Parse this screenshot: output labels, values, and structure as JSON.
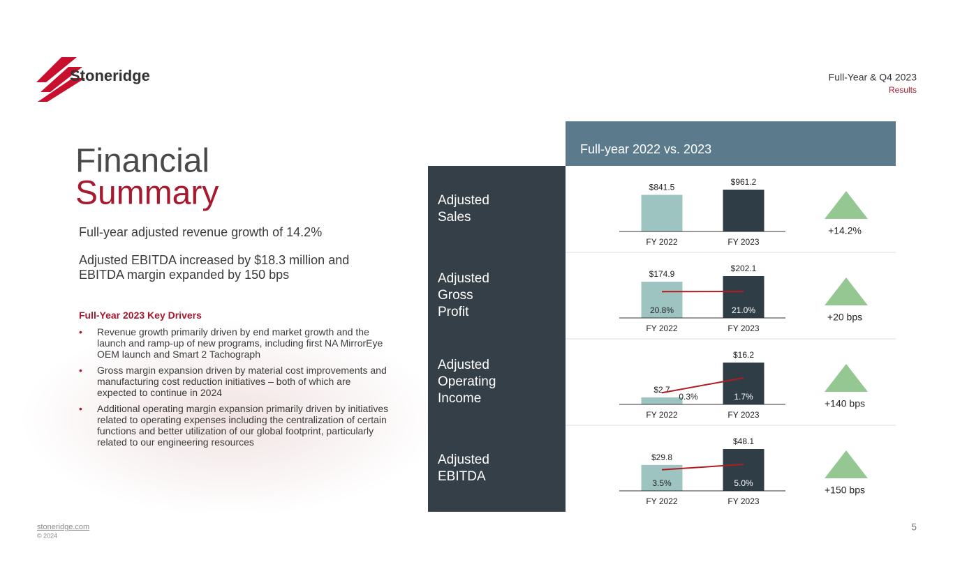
{
  "logo": "Stoneridge",
  "header": {
    "title": "Full-Year & Q4 2023",
    "subtitle": "Results"
  },
  "heading": {
    "line1": "Financial",
    "line2": "Summary"
  },
  "highlights": [
    "Full-year adjusted revenue growth of 14.2%",
    "Adjusted EBITDA increased by $18.3 million and EBITDA margin expanded by 150 bps"
  ],
  "drivers": {
    "title": "Full-Year 2023 Key Drivers",
    "items": [
      "Revenue growth primarily driven by end market growth and the launch and ramp-up of new programs, including first NA MirrorEye OEM launch and Smart 2 Tachograph",
      "Gross margin expansion driven by material cost improvements and manufacturing cost reduction initiatives – both of which are expected to continue in 2024",
      "Additional operating margin expansion primarily driven by initiatives related to operating expenses including the centralization of certain functions and better utilization of our global footprint, particularly related to our engineering resources"
    ]
  },
  "panel": {
    "title": "Full-year 2022 vs. 2023",
    "rows": [
      {
        "label": "Adjusted Sales",
        "categories": [
          "FY 2022",
          "FY 2023"
        ],
        "values": [
          841.5,
          961.2
        ],
        "value_labels": [
          "$841.5",
          "$961.2"
        ],
        "change": "+14.2%"
      },
      {
        "label": "Adjusted Gross Profit",
        "categories": [
          "FY 2022",
          "FY 2023"
        ],
        "values": [
          174.9,
          202.1
        ],
        "value_labels": [
          "$174.9",
          "$202.1"
        ],
        "margins": [
          20.8,
          21.0
        ],
        "margin_labels": [
          "20.8%",
          "21.0%"
        ],
        "change": "+20 bps"
      },
      {
        "label": "Adjusted Operating Income",
        "categories": [
          "FY 2022",
          "FY 2023"
        ],
        "values": [
          2.7,
          16.2
        ],
        "value_labels": [
          "$2.7",
          "$16.2"
        ],
        "margins": [
          0.3,
          1.7
        ],
        "margin_labels": [
          "0.3%",
          "1.7%"
        ],
        "change": "+140 bps"
      },
      {
        "label": "Adjusted EBITDA",
        "categories": [
          "FY 2022",
          "FY 2023"
        ],
        "values": [
          29.8,
          48.1
        ],
        "value_labels": [
          "$29.8",
          "$48.1"
        ],
        "margins": [
          3.5,
          5.0
        ],
        "margin_labels": [
          "3.5%",
          "5.0%"
        ],
        "change": "+150 bps"
      }
    ]
  },
  "footer": {
    "site": "stoneridge.com",
    "copyright": "© 2024",
    "page": "5"
  }
}
